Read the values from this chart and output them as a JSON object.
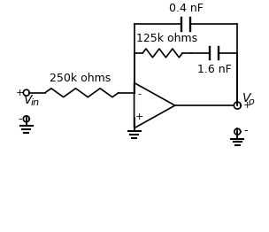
{
  "bg_color": "#ffffff",
  "line_color": "#000000",
  "text_color": "#000000",
  "font_size": 9,
  "title": "",
  "components": {
    "cap_top_label": "0.4 nF",
    "res_mid_label": "125k ohms",
    "cap_mid_label": "1.6 nF",
    "res_input_label": "250k ohms",
    "vin_label": "V",
    "vin_sub": "in",
    "vo_label": "V",
    "vo_sub": "o"
  }
}
